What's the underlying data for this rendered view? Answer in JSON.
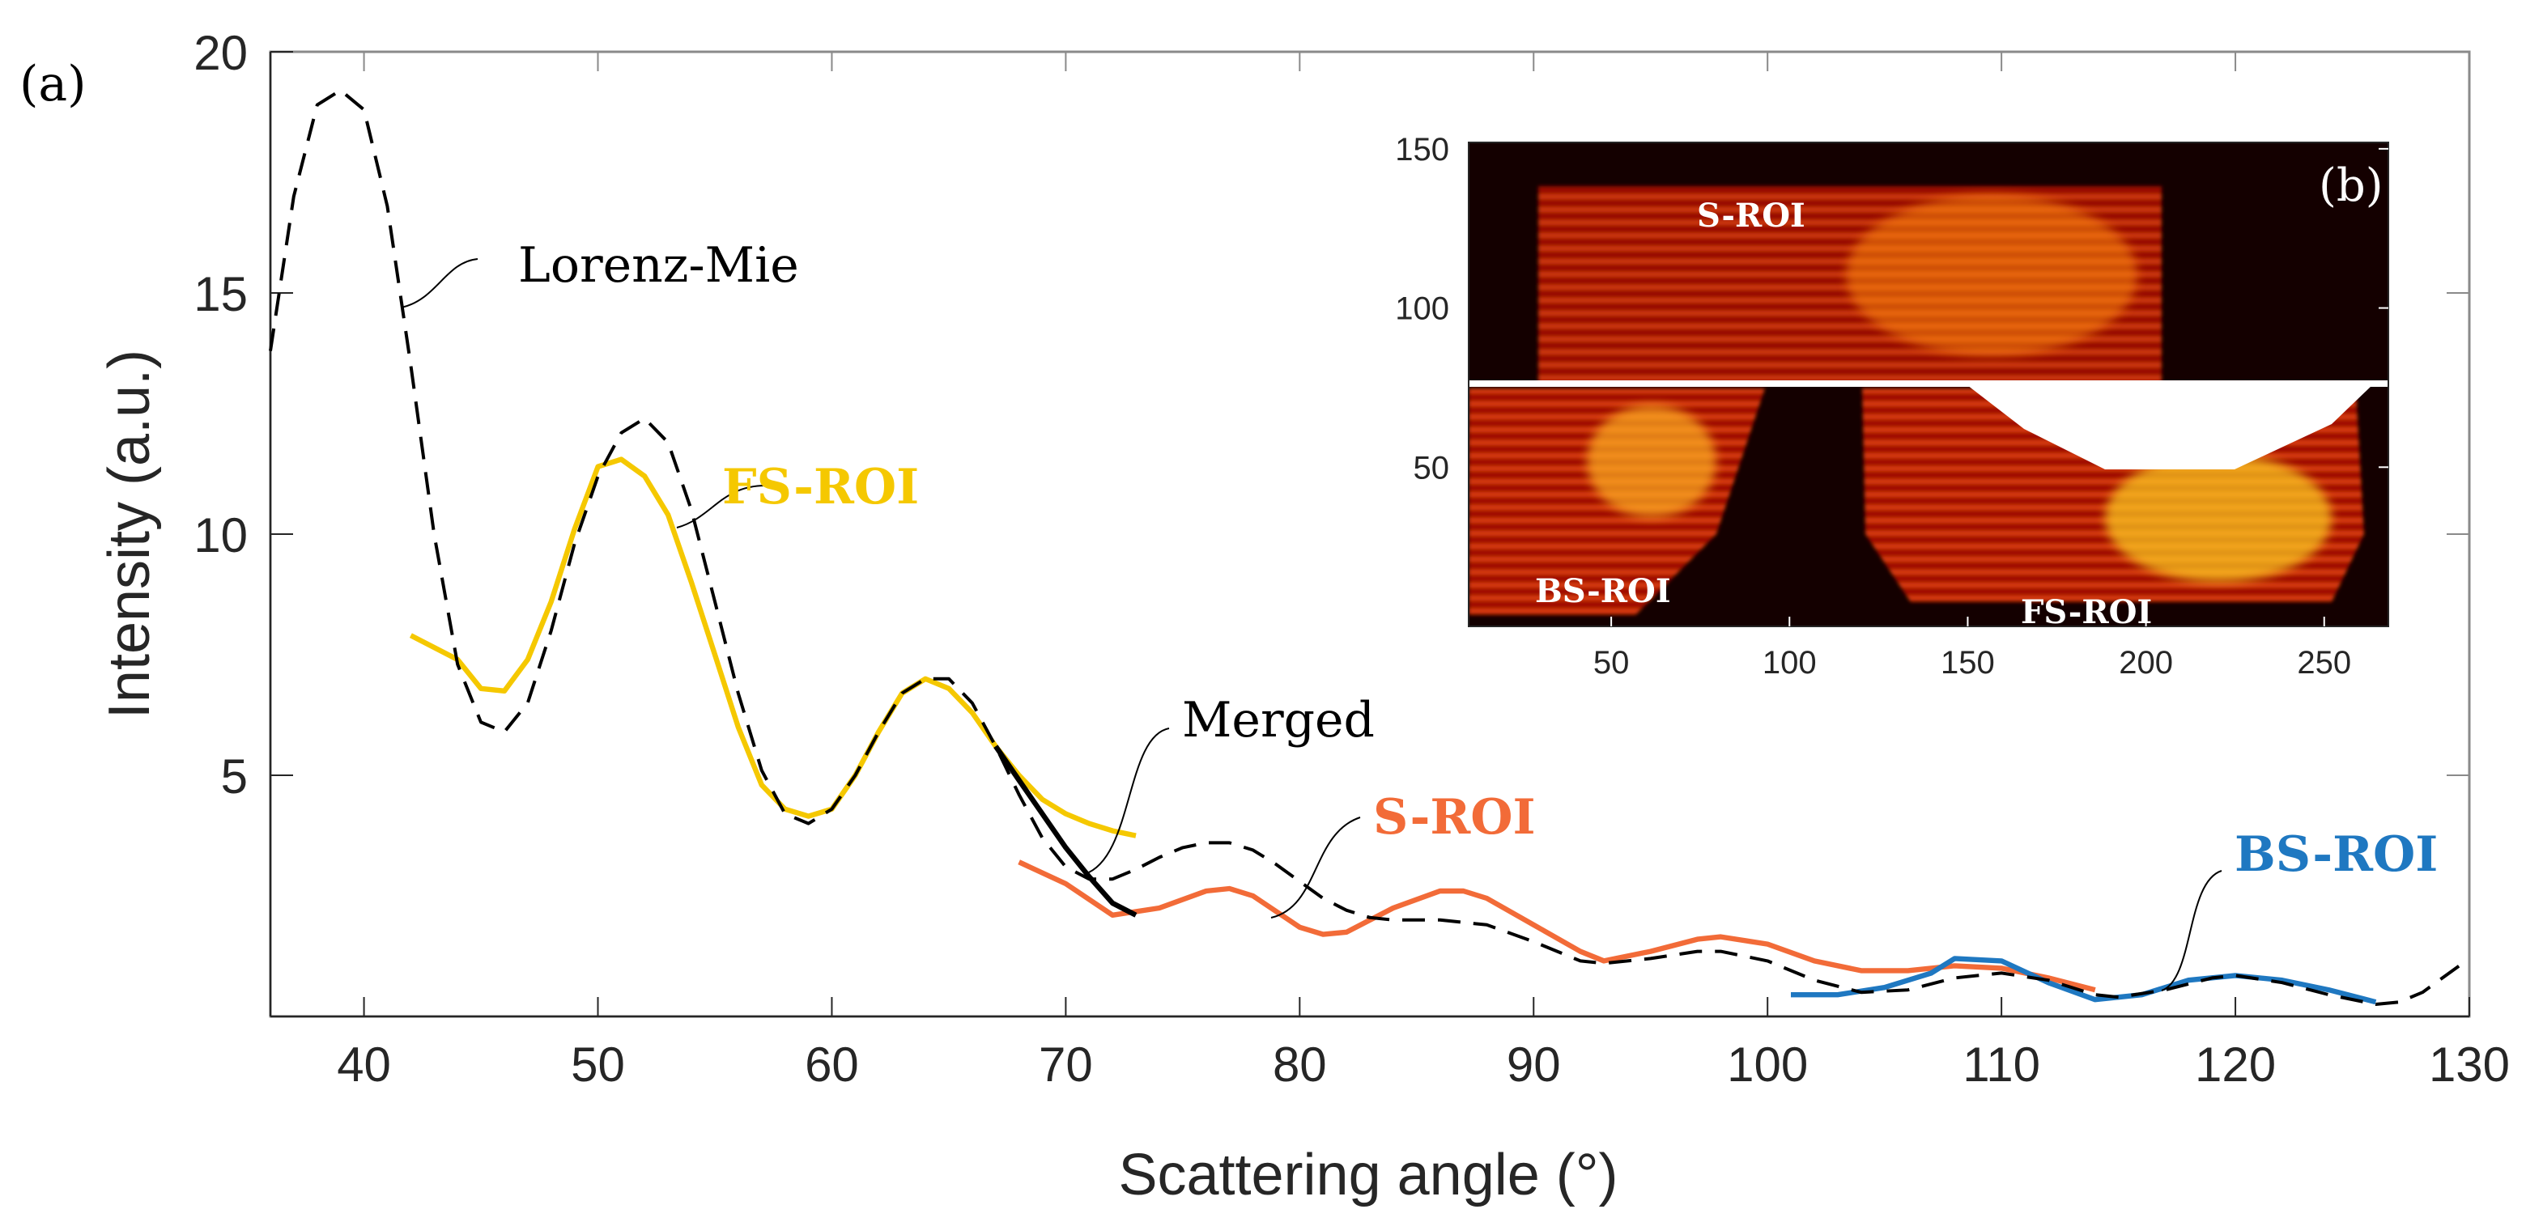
{
  "chart_data": [
    {
      "type": "line",
      "panel_label": "(a)",
      "xlabel": "Scattering angle (°)",
      "ylabel": "Intensity (a.u.)",
      "xlim": [
        36,
        130
      ],
      "ylim": [
        0,
        20
      ],
      "xticks": [
        40,
        50,
        60,
        70,
        80,
        90,
        100,
        110,
        120,
        130
      ],
      "yticks": [
        5,
        10,
        15,
        20
      ],
      "grid": false,
      "series": [
        {
          "name": "Lorenz-Mie",
          "color": "#000000",
          "style": "dashed",
          "points": [
            [
              36,
              13.8
            ],
            [
              37,
              17
            ],
            [
              38,
              18.9
            ],
            [
              39,
              19.2
            ],
            [
              40,
              18.8
            ],
            [
              41,
              16.8
            ],
            [
              42,
              13.5
            ],
            [
              43,
              10
            ],
            [
              44,
              7.3
            ],
            [
              45,
              6.1
            ],
            [
              46,
              5.9
            ],
            [
              47,
              6.5
            ],
            [
              48,
              8
            ],
            [
              49,
              9.8
            ],
            [
              50,
              11.2
            ],
            [
              51,
              12.1
            ],
            [
              52,
              12.4
            ],
            [
              53,
              11.9
            ],
            [
              54,
              10.5
            ],
            [
              55,
              8.6
            ],
            [
              56,
              6.7
            ],
            [
              57,
              5.1
            ],
            [
              58,
              4.2
            ],
            [
              59,
              4.0
            ],
            [
              60,
              4.3
            ],
            [
              61,
              5.0
            ],
            [
              62,
              5.9
            ],
            [
              63,
              6.7
            ],
            [
              64,
              7.0
            ],
            [
              65,
              7.0
            ],
            [
              66,
              6.5
            ],
            [
              67,
              5.6
            ],
            [
              68,
              4.6
            ],
            [
              69,
              3.7
            ],
            [
              70,
              3.1
            ],
            [
              71,
              2.85
            ],
            [
              72,
              2.85
            ],
            [
              73,
              3.05
            ],
            [
              74,
              3.3
            ],
            [
              75,
              3.5
            ],
            [
              76,
              3.6
            ],
            [
              77,
              3.6
            ],
            [
              78,
              3.45
            ],
            [
              79,
              3.15
            ],
            [
              80,
              2.8
            ],
            [
              81,
              2.45
            ],
            [
              82,
              2.2
            ],
            [
              83,
              2.05
            ],
            [
              84,
              2.0
            ],
            [
              86,
              2.0
            ],
            [
              88,
              1.9
            ],
            [
              90,
              1.55
            ],
            [
              92,
              1.15
            ],
            [
              93,
              1.1
            ],
            [
              95,
              1.2
            ],
            [
              97,
              1.35
            ],
            [
              98,
              1.35
            ],
            [
              100,
              1.15
            ],
            [
              102,
              0.75
            ],
            [
              104,
              0.5
            ],
            [
              106,
              0.55
            ],
            [
              108,
              0.8
            ],
            [
              110,
              0.9
            ],
            [
              112,
              0.75
            ],
            [
              114,
              0.45
            ],
            [
              115,
              0.4
            ],
            [
              117,
              0.55
            ],
            [
              119,
              0.8
            ],
            [
              120,
              0.85
            ],
            [
              122,
              0.7
            ],
            [
              124,
              0.45
            ],
            [
              126,
              0.25
            ],
            [
              127,
              0.3
            ],
            [
              128,
              0.5
            ],
            [
              130,
              1.2
            ]
          ]
        },
        {
          "name": "FS-ROI",
          "color": "#F5C800",
          "style": "solid",
          "points": [
            [
              42,
              7.9
            ],
            [
              44,
              7.4
            ],
            [
              45,
              6.8
            ],
            [
              46,
              6.75
            ],
            [
              47,
              7.4
            ],
            [
              48,
              8.6
            ],
            [
              49,
              10.1
            ],
            [
              50,
              11.4
            ],
            [
              51,
              11.55
            ],
            [
              52,
              11.2
            ],
            [
              53,
              10.4
            ],
            [
              54,
              9.0
            ],
            [
              55,
              7.5
            ],
            [
              56,
              6.0
            ],
            [
              57,
              4.8
            ],
            [
              58,
              4.3
            ],
            [
              59,
              4.15
            ],
            [
              60,
              4.3
            ],
            [
              61,
              5.0
            ],
            [
              62,
              5.9
            ],
            [
              63,
              6.7
            ],
            [
              64,
              7.0
            ],
            [
              65,
              6.8
            ],
            [
              66,
              6.3
            ],
            [
              67,
              5.6
            ],
            [
              68,
              5.0
            ],
            [
              69,
              4.5
            ],
            [
              70,
              4.2
            ],
            [
              71,
              4.0
            ],
            [
              72,
              3.85
            ],
            [
              73,
              3.75
            ]
          ]
        },
        {
          "name": "Merged",
          "color": "#000000",
          "style": "solid",
          "points": [
            [
              67,
              5.6
            ],
            [
              68,
              4.9
            ],
            [
              69,
              4.2
            ],
            [
              70,
              3.5
            ],
            [
              71,
              2.9
            ],
            [
              72,
              2.35
            ],
            [
              73,
              2.1
            ]
          ]
        },
        {
          "name": "S-ROI",
          "color": "#F26B38",
          "style": "solid",
          "points": [
            [
              68,
              3.2
            ],
            [
              70,
              2.75
            ],
            [
              72,
              2.1
            ],
            [
              74,
              2.25
            ],
            [
              76,
              2.6
            ],
            [
              77,
              2.65
            ],
            [
              78,
              2.5
            ],
            [
              80,
              1.85
            ],
            [
              81,
              1.7
            ],
            [
              82,
              1.75
            ],
            [
              84,
              2.25
            ],
            [
              86,
              2.6
            ],
            [
              87,
              2.6
            ],
            [
              88,
              2.45
            ],
            [
              90,
              1.9
            ],
            [
              92,
              1.35
            ],
            [
              93,
              1.15
            ],
            [
              95,
              1.35
            ],
            [
              97,
              1.6
            ],
            [
              98,
              1.65
            ],
            [
              100,
              1.5
            ],
            [
              102,
              1.15
            ],
            [
              104,
              0.95
            ],
            [
              106,
              0.95
            ],
            [
              108,
              1.05
            ],
            [
              110,
              1.0
            ],
            [
              112,
              0.8
            ],
            [
              114,
              0.55
            ]
          ]
        },
        {
          "name": "BS-ROI",
          "color": "#1F78C1",
          "style": "solid",
          "points": [
            [
              101,
              0.45
            ],
            [
              103,
              0.45
            ],
            [
              105,
              0.6
            ],
            [
              107,
              0.9
            ],
            [
              108,
              1.2
            ],
            [
              110,
              1.15
            ],
            [
              112,
              0.7
            ],
            [
              114,
              0.35
            ],
            [
              116,
              0.45
            ],
            [
              118,
              0.75
            ],
            [
              120,
              0.85
            ],
            [
              122,
              0.75
            ],
            [
              124,
              0.55
            ],
            [
              126,
              0.3
            ]
          ]
        }
      ],
      "annotations": [
        "Lorenz-Mie",
        "FS-ROI",
        "Merged",
        "S-ROI",
        "BS-ROI"
      ]
    },
    {
      "type": "heatmap",
      "panel_label": "(b)",
      "xlim": [
        10,
        268
      ],
      "ylim": [
        0,
        152
      ],
      "xticks": [
        50,
        100,
        150,
        200,
        250
      ],
      "yticks": [
        50,
        100,
        150
      ],
      "colormap": "hot",
      "region_labels": [
        "S-ROI",
        "BS-ROI",
        "FS-ROI"
      ]
    }
  ]
}
